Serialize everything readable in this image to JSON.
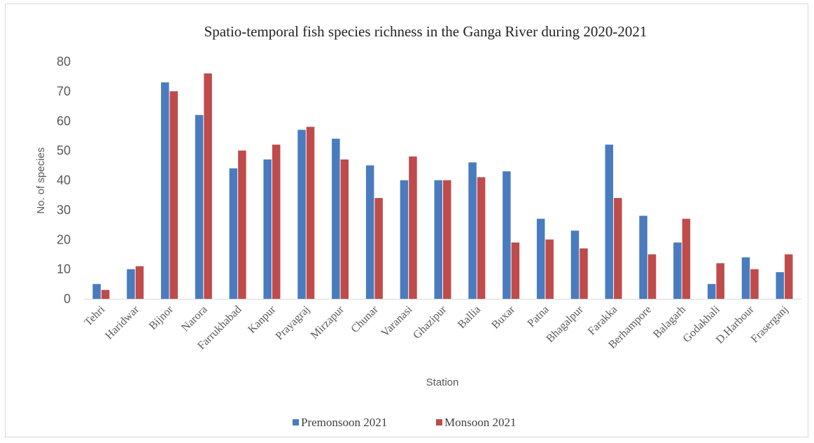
{
  "chart_data": {
    "type": "bar",
    "title": "Spatio-temporal fish species richness in the Ganga River during 2020-2021",
    "xlabel": "Station",
    "ylabel": "No. of species",
    "ylim": [
      0,
      80
    ],
    "yticks": [
      0,
      10,
      20,
      30,
      40,
      50,
      60,
      70,
      80
    ],
    "grid": false,
    "legend_position": "bottom",
    "categories": [
      "Tehri",
      "Haridwar",
      "Bijnor",
      "Narora",
      "Farrukhabad",
      "Kanpur",
      "Prayagraj",
      "Mirzapur",
      "Chunar",
      "Varanasi",
      "Ghazipur",
      "Ballia",
      "Buxar",
      "Patna",
      "Bhagalpur",
      "Farakka",
      "Berhampore",
      "Balagarh",
      "Godakhali",
      "D.Harbour",
      "Fraserganj"
    ],
    "series": [
      {
        "name": "Premonsoon 2021",
        "color": "#4a7bbf",
        "values": [
          5,
          10,
          73,
          62,
          44,
          47,
          57,
          54,
          45,
          40,
          40,
          46,
          43,
          27,
          23,
          52,
          28,
          19,
          5,
          14,
          9
        ]
      },
      {
        "name": "Monsoon 2021",
        "color": "#bf4b4b",
        "values": [
          3,
          11,
          70,
          76,
          50,
          52,
          58,
          47,
          34,
          48,
          40,
          41,
          19,
          20,
          17,
          34,
          15,
          27,
          12,
          10,
          15
        ]
      }
    ]
  }
}
